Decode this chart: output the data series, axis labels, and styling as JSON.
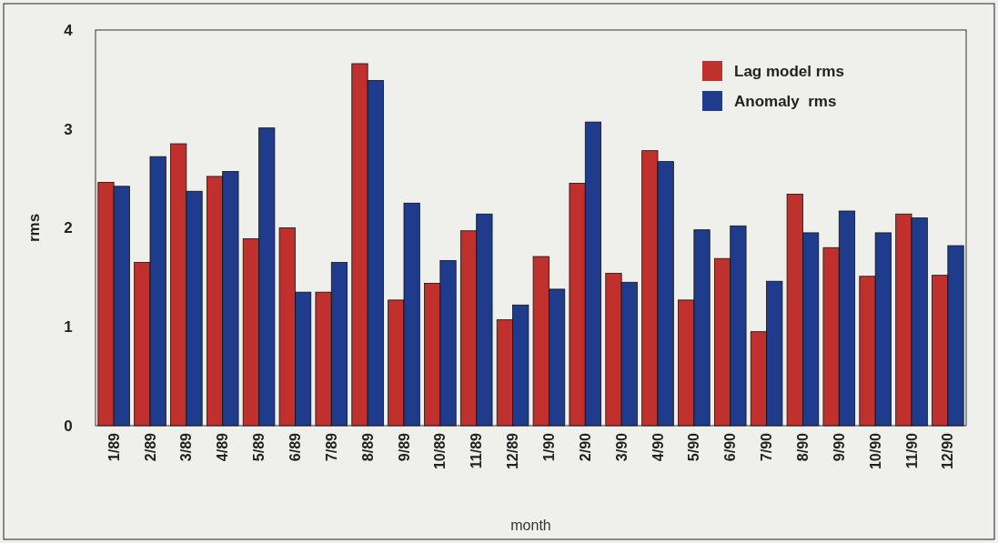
{
  "chart_data": {
    "type": "bar",
    "xlabel": "month",
    "ylabel": "rms",
    "categories": [
      "1/89",
      "2/89",
      "3/89",
      "4/89",
      "5/89",
      "6/89",
      "7/89",
      "8/89",
      "9/89",
      "10/89",
      "11/89",
      "12/89",
      "1/90",
      "2/90",
      "3/90",
      "4/90",
      "5/90",
      "6/90",
      "7/90",
      "8/90",
      "9/90",
      "10/90",
      "11/90",
      "12/90"
    ],
    "series": [
      {
        "name": "Lag model rms",
        "color": "#c0302c",
        "values": [
          2.46,
          1.65,
          2.85,
          2.52,
          1.89,
          2.0,
          1.35,
          3.66,
          1.27,
          1.44,
          1.97,
          1.07,
          1.71,
          2.45,
          1.54,
          2.78,
          1.27,
          1.69,
          0.95,
          2.34,
          1.8,
          1.51,
          2.14,
          1.52
        ]
      },
      {
        "name": "Anomaly  rms",
        "color": "#1f3c8c",
        "values": [
          2.42,
          2.72,
          2.37,
          2.57,
          3.01,
          1.35,
          1.65,
          3.49,
          2.25,
          1.67,
          2.14,
          1.22,
          1.38,
          3.07,
          1.45,
          2.67,
          1.98,
          2.02,
          1.46,
          1.95,
          2.17,
          1.95,
          2.1,
          1.82
        ]
      }
    ],
    "ylim": [
      0,
      4
    ],
    "yticks": [
      0,
      1,
      2,
      3,
      4
    ],
    "grid": false,
    "legend": "top right"
  }
}
